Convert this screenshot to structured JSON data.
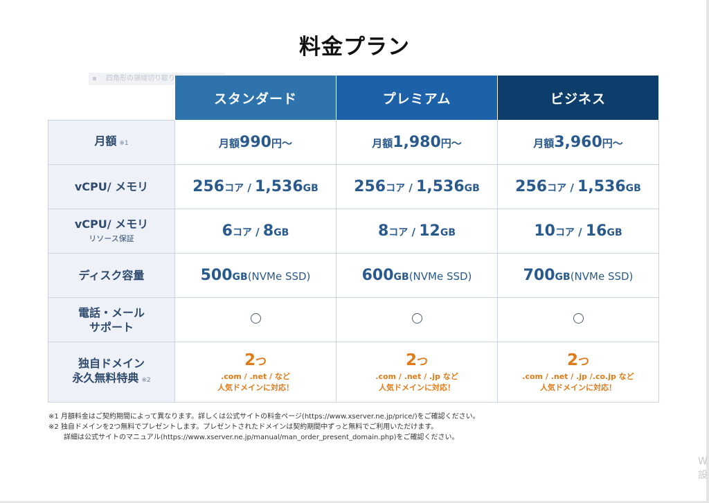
{
  "title": "料金プラン",
  "placeholder_text": "四角形の領域切り取り例",
  "plans": [
    "スタンダード",
    "プレミアム",
    "ビジネス"
  ],
  "rows": {
    "price": {
      "label": "月額",
      "note": "※1",
      "prefix": "月額",
      "suffix": "円〜",
      "values": [
        "990",
        "1,980",
        "3,960"
      ]
    },
    "vcpu": {
      "label": "vCPU/ メモリ",
      "core_unit": "コア",
      "sep": " / ",
      "mem_unit": "GB",
      "cores": [
        "256",
        "256",
        "256"
      ],
      "memory": [
        "1,536",
        "1,536",
        "1,536"
      ]
    },
    "guarantee": {
      "label": "vCPU/ メモリ",
      "sublabel": "リソース保証",
      "core_unit": "コア",
      "sep": " / ",
      "mem_unit": "GB",
      "cores": [
        "6",
        "8",
        "10"
      ],
      "memory": [
        "8",
        "12",
        "16"
      ]
    },
    "disk": {
      "label": "ディスク容量",
      "unit": "GB",
      "type": "(NVMe SSD)",
      "values": [
        "500",
        "600",
        "700"
      ]
    },
    "support": {
      "label_line1": "電話・メール",
      "label_line2": "サポート",
      "mark": "○"
    },
    "domain": {
      "label_line1": "独自ドメイン",
      "label_line2": "永久無料特典",
      "note": "※2",
      "count": "2",
      "count_unit": "つ",
      "tlds": [
        ".com / .net / など",
        ".com / .net / .jp など",
        ".com / .net / .jp /.co.jp など"
      ],
      "tagline": "人気ドメインに対応！"
    }
  },
  "footnotes": [
    "※1 月額料金はご契約期間によって異なります。詳しくは公式サイトの料金ページ(https://www.xserver.ne.jp/price/)をご確認ください。",
    "※2 独自ドメインを2つ無料でプレゼントします。プレゼントされたドメインは契約期間中ずっと無料でご利用いただけます。",
    "詳細は公式サイトのマニュアル(https://www.xserver.ne.jp/manual/man_order_present_domain.php)をご確認ください。"
  ],
  "corner": [
    "W",
    "設"
  ],
  "colors": {
    "standard": "#2e73ac",
    "premium": "#1d61a8",
    "business": "#0d3e6b",
    "accent_orange": "#e07b1a"
  }
}
